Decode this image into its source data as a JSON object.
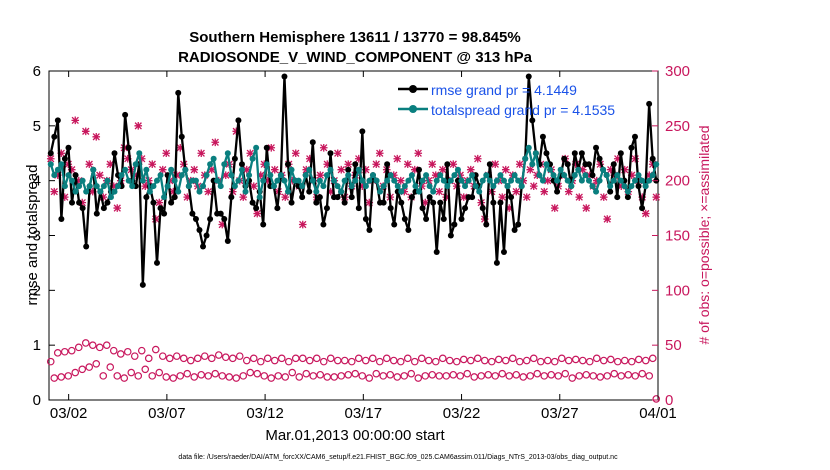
{
  "chart_data": {
    "type": "line",
    "title_line1": "Southern Hemisphere 13611 / 13770 = 98.845%",
    "title_line2": "RADIOSONDE_V_WIND_COMPONENT @ 313 hPa",
    "xlabel": "Mar.01,2013 00:00:00 start",
    "ylabel": "rmse and totalspread",
    "ylabel_right": "# of obs: o=possible; ×=assimilated",
    "footer": "data file: /Users/raeder/DAI/ATM_forcXX/CAM6_setup/f.e21.FHIST_BGC.f09_025.CAM6assim.011/Diags_NTrS_2013-03/obs_diag_output.nc",
    "xlim": [
      1,
      32
    ],
    "ylim": [
      0,
      6
    ],
    "ylim_right": [
      0,
      300
    ],
    "x_ticks": [
      2,
      7,
      12,
      17,
      22,
      27,
      32
    ],
    "x_tick_labels": [
      "03/02",
      "03/07",
      "03/12",
      "03/17",
      "03/22",
      "03/27",
      "04/01"
    ],
    "y_ticks": [
      0,
      1,
      2,
      3,
      4,
      5,
      6
    ],
    "y_ticks_right": [
      0,
      50,
      100,
      150,
      200,
      250,
      300
    ],
    "colors": {
      "rmse": "#000000",
      "spread": "#0a7f7f",
      "obs": "#c8175d",
      "legend_text": "#1a52e8"
    },
    "series": [
      {
        "name": "rmse grand pr = 4.1449",
        "color": "#000000",
        "values": [
          4.5,
          4.8,
          5.1,
          3.3,
          4.4,
          4.6,
          3.6,
          4.1,
          3.6,
          3.5,
          2.8,
          3.9,
          4.2,
          3.4,
          3.8,
          3.5,
          3.6,
          3.8,
          4.5,
          4.1,
          3.9,
          5.2,
          4.6,
          4.0,
          3.9,
          4.3,
          2.1,
          3.7,
          3.9,
          3.6,
          2.5,
          3.5,
          3.4,
          4.1,
          3.6,
          3.7,
          5.6,
          4.8,
          4.2,
          3.9,
          3.4,
          3.3,
          3.1,
          2.8,
          3.0,
          3.3,
          4.0,
          3.4,
          3.4,
          3.3,
          2.9,
          3.7,
          4.4,
          5.1,
          4.3,
          3.9,
          4.0,
          3.6,
          3.5,
          3.8,
          3.2,
          4.6,
          3.9,
          3.9,
          3.5,
          4.1,
          5.9,
          4.3,
          3.6,
          4.0,
          3.9,
          3.7,
          4.1,
          3.8,
          4.7,
          3.6,
          3.7,
          3.2,
          3.5,
          4.5,
          3.7,
          3.7,
          3.8,
          3.6,
          4.2,
          3.7,
          4.3,
          3.5,
          4.9,
          3.3,
          3.1,
          4.1,
          4.0,
          3.6,
          3.6,
          4.3,
          3.5,
          3.2,
          3.8,
          3.6,
          3.3,
          3.1,
          3.7,
          3.8,
          4.2,
          3.5,
          3.3,
          3.7,
          3.6,
          2.7,
          3.6,
          3.3,
          4.3,
          3.0,
          3.2,
          4.0,
          3.3,
          3.5,
          3.7,
          3.7,
          4.1,
          3.9,
          3.5,
          3.2,
          4.3,
          3.6,
          2.5,
          3.6,
          2.7,
          3.9,
          3.7,
          3.1,
          3.2,
          3.9,
          4.4,
          5.9,
          5.1,
          4.5,
          4.3,
          4.8,
          4.5,
          4.3,
          4.0,
          3.8,
          4.1,
          4.4,
          4.3,
          3.9,
          4.5,
          4.2,
          4.5,
          4.3,
          4.3,
          4.1,
          4.6,
          4.4,
          4.2,
          4.1,
          3.8,
          4.3,
          3.7,
          4.5,
          4.0,
          3.7,
          4.6,
          4.8,
          3.9,
          3.5,
          3.9,
          5.4,
          4.4,
          4.0
        ]
      },
      {
        "name": "totalspread grand pr = 4.1535",
        "color": "#0a7f7f",
        "values": [
          4.3,
          4.1,
          4.2,
          4.3,
          3.9,
          4.1,
          4.0,
          3.8,
          3.9,
          4.0,
          3.8,
          3.9,
          4.2,
          3.9,
          3.8,
          3.9,
          4.0,
          3.7,
          3.8,
          3.9,
          4.1,
          4.2,
          4.0,
          3.9,
          4.3,
          4.5,
          4.0,
          4.2,
          3.8,
          3.9,
          4.0,
          4.1,
          3.7,
          3.9,
          4.2,
          4.0,
          3.8,
          4.1,
          4.2,
          3.9,
          4.0,
          4.0,
          3.8,
          3.9,
          4.1,
          4.3,
          4.4,
          4.0,
          3.9,
          4.3,
          4.5,
          4.1,
          3.9,
          4.0,
          4.2,
          3.8,
          4.1,
          4.4,
          4.6,
          3.7,
          4.0,
          4.3,
          4.1,
          3.9,
          4.0,
          4.1,
          4.0,
          3.8,
          4.2,
          4.0,
          4.0,
          3.9,
          4.1,
          4.2,
          4.0,
          3.8,
          4.0,
          3.9,
          4.1,
          4.2,
          4.0,
          3.9,
          3.8,
          4.0,
          4.1,
          3.9,
          4.0,
          4.2,
          4.0,
          3.9,
          4.0,
          4.1,
          4.0,
          3.8,
          3.9,
          4.0,
          4.1,
          4.0,
          3.9,
          3.8,
          3.9,
          4.0,
          4.1,
          3.9,
          3.8,
          4.0,
          4.1,
          3.9,
          3.8,
          4.0,
          4.1,
          4.0,
          3.9,
          4.0,
          4.1,
          4.2,
          4.0,
          3.9,
          4.0,
          4.1,
          3.9,
          3.8,
          4.0,
          4.1,
          4.0,
          3.9,
          4.0,
          4.1,
          4.0,
          3.9,
          4.0,
          4.1,
          4.0,
          3.9,
          4.4,
          4.6,
          4.3,
          4.5,
          4.1,
          4.0,
          4.3,
          4.2,
          4.1,
          4.0,
          4.2,
          4.1,
          4.0,
          3.9,
          4.1,
          4.2,
          4.0,
          4.1,
          4.0,
          3.9,
          3.8,
          4.0,
          4.2,
          4.1,
          3.9,
          4.0,
          4.1,
          4.0,
          3.9,
          3.8,
          3.9,
          4.0,
          4.1,
          4.0,
          3.9,
          4.0,
          4.1,
          4.3
        ]
      },
      {
        "name": "obs possible",
        "color": "#c8175d",
        "axis": "right",
        "values": [
          35,
          20,
          43,
          21,
          44,
          22,
          45,
          25,
          48,
          28,
          52,
          30,
          50,
          33,
          48,
          22,
          50,
          30,
          45,
          22,
          42,
          20,
          44,
          25,
          40,
          22,
          45,
          28,
          38,
          22,
          46,
          25,
          40,
          21,
          38,
          20,
          40,
          22,
          38,
          24,
          36,
          21,
          38,
          23,
          40,
          22,
          38,
          24,
          41,
          22,
          39,
          21,
          38,
          20,
          40,
          22,
          36,
          25,
          38,
          24,
          35,
          22,
          38,
          20,
          36,
          22,
          38,
          21,
          35,
          25,
          38,
          21,
          38,
          24,
          36,
          22,
          38,
          23,
          35,
          21,
          38,
          21,
          36,
          22,
          36,
          23,
          35,
          24,
          38,
          22,
          36,
          20,
          38,
          24,
          35,
          22,
          38,
          23,
          36,
          21,
          35,
          22,
          38,
          24,
          35,
          20,
          38,
          22,
          36,
          23,
          35,
          22,
          38,
          22,
          36,
          23,
          35,
          22,
          37,
          24,
          36,
          21,
          38,
          22,
          36,
          23,
          35,
          22,
          37,
          24,
          36,
          22,
          38,
          23,
          35,
          21,
          36,
          22,
          38,
          24,
          35,
          22,
          36,
          23,
          35,
          22,
          38,
          24,
          36,
          20,
          37,
          22,
          36,
          23,
          35,
          22,
          38,
          21,
          36,
          22,
          37,
          24,
          35,
          22,
          36,
          23,
          35,
          22,
          37,
          24,
          36,
          22,
          38,
          1
        ]
      },
      {
        "name": "obs assimilated",
        "color": "#c8175d",
        "axis": "right",
        "values": [
          220,
          190,
          205,
          225,
          185,
          215,
          210,
          255,
          200,
          180,
          245,
          215,
          190,
          240,
          205,
          185,
          200,
          215,
          195,
          175,
          200,
          230,
          220,
          210,
          205,
          250,
          220,
          195,
          200,
          215,
          165,
          180,
          210,
          225,
          200,
          190,
          205,
          230,
          215,
          185,
          200,
          210,
          195,
          225,
          205,
          190,
          210,
          235,
          200,
          160,
          205,
          215,
          190,
          245,
          200,
          185,
          210,
          225,
          195,
          170,
          205,
          215,
          200,
          230,
          210,
          190,
          205,
          185,
          215,
          200,
          225,
          195,
          160,
          210,
          220,
          200,
          185,
          205,
          230,
          215,
          190,
          200,
          225,
          210,
          185,
          215,
          195,
          205,
          220,
          195,
          210,
          180,
          200,
          215,
          225,
          195,
          210,
          185,
          205,
          220,
          200,
          190,
          215,
          185,
          210,
          225,
          195,
          180,
          200,
          215,
          205,
          190,
          210,
          185,
          200,
          215,
          195,
          205,
          185,
          200,
          210,
          195,
          220,
          180,
          165,
          205,
          190,
          215,
          200,
          185,
          210,
          175,
          205,
          190,
          215,
          200,
          185,
          210,
          195,
          205,
          215,
          190,
          200,
          210,
          175,
          195,
          205,
          220,
          190,
          200,
          215,
          185,
          210,
          175,
          205,
          195,
          200,
          215,
          185,
          165,
          210,
          205,
          220,
          195,
          210,
          190,
          205,
          220,
          200,
          185,
          170,
          205,
          215,
          185
        ]
      }
    ]
  }
}
